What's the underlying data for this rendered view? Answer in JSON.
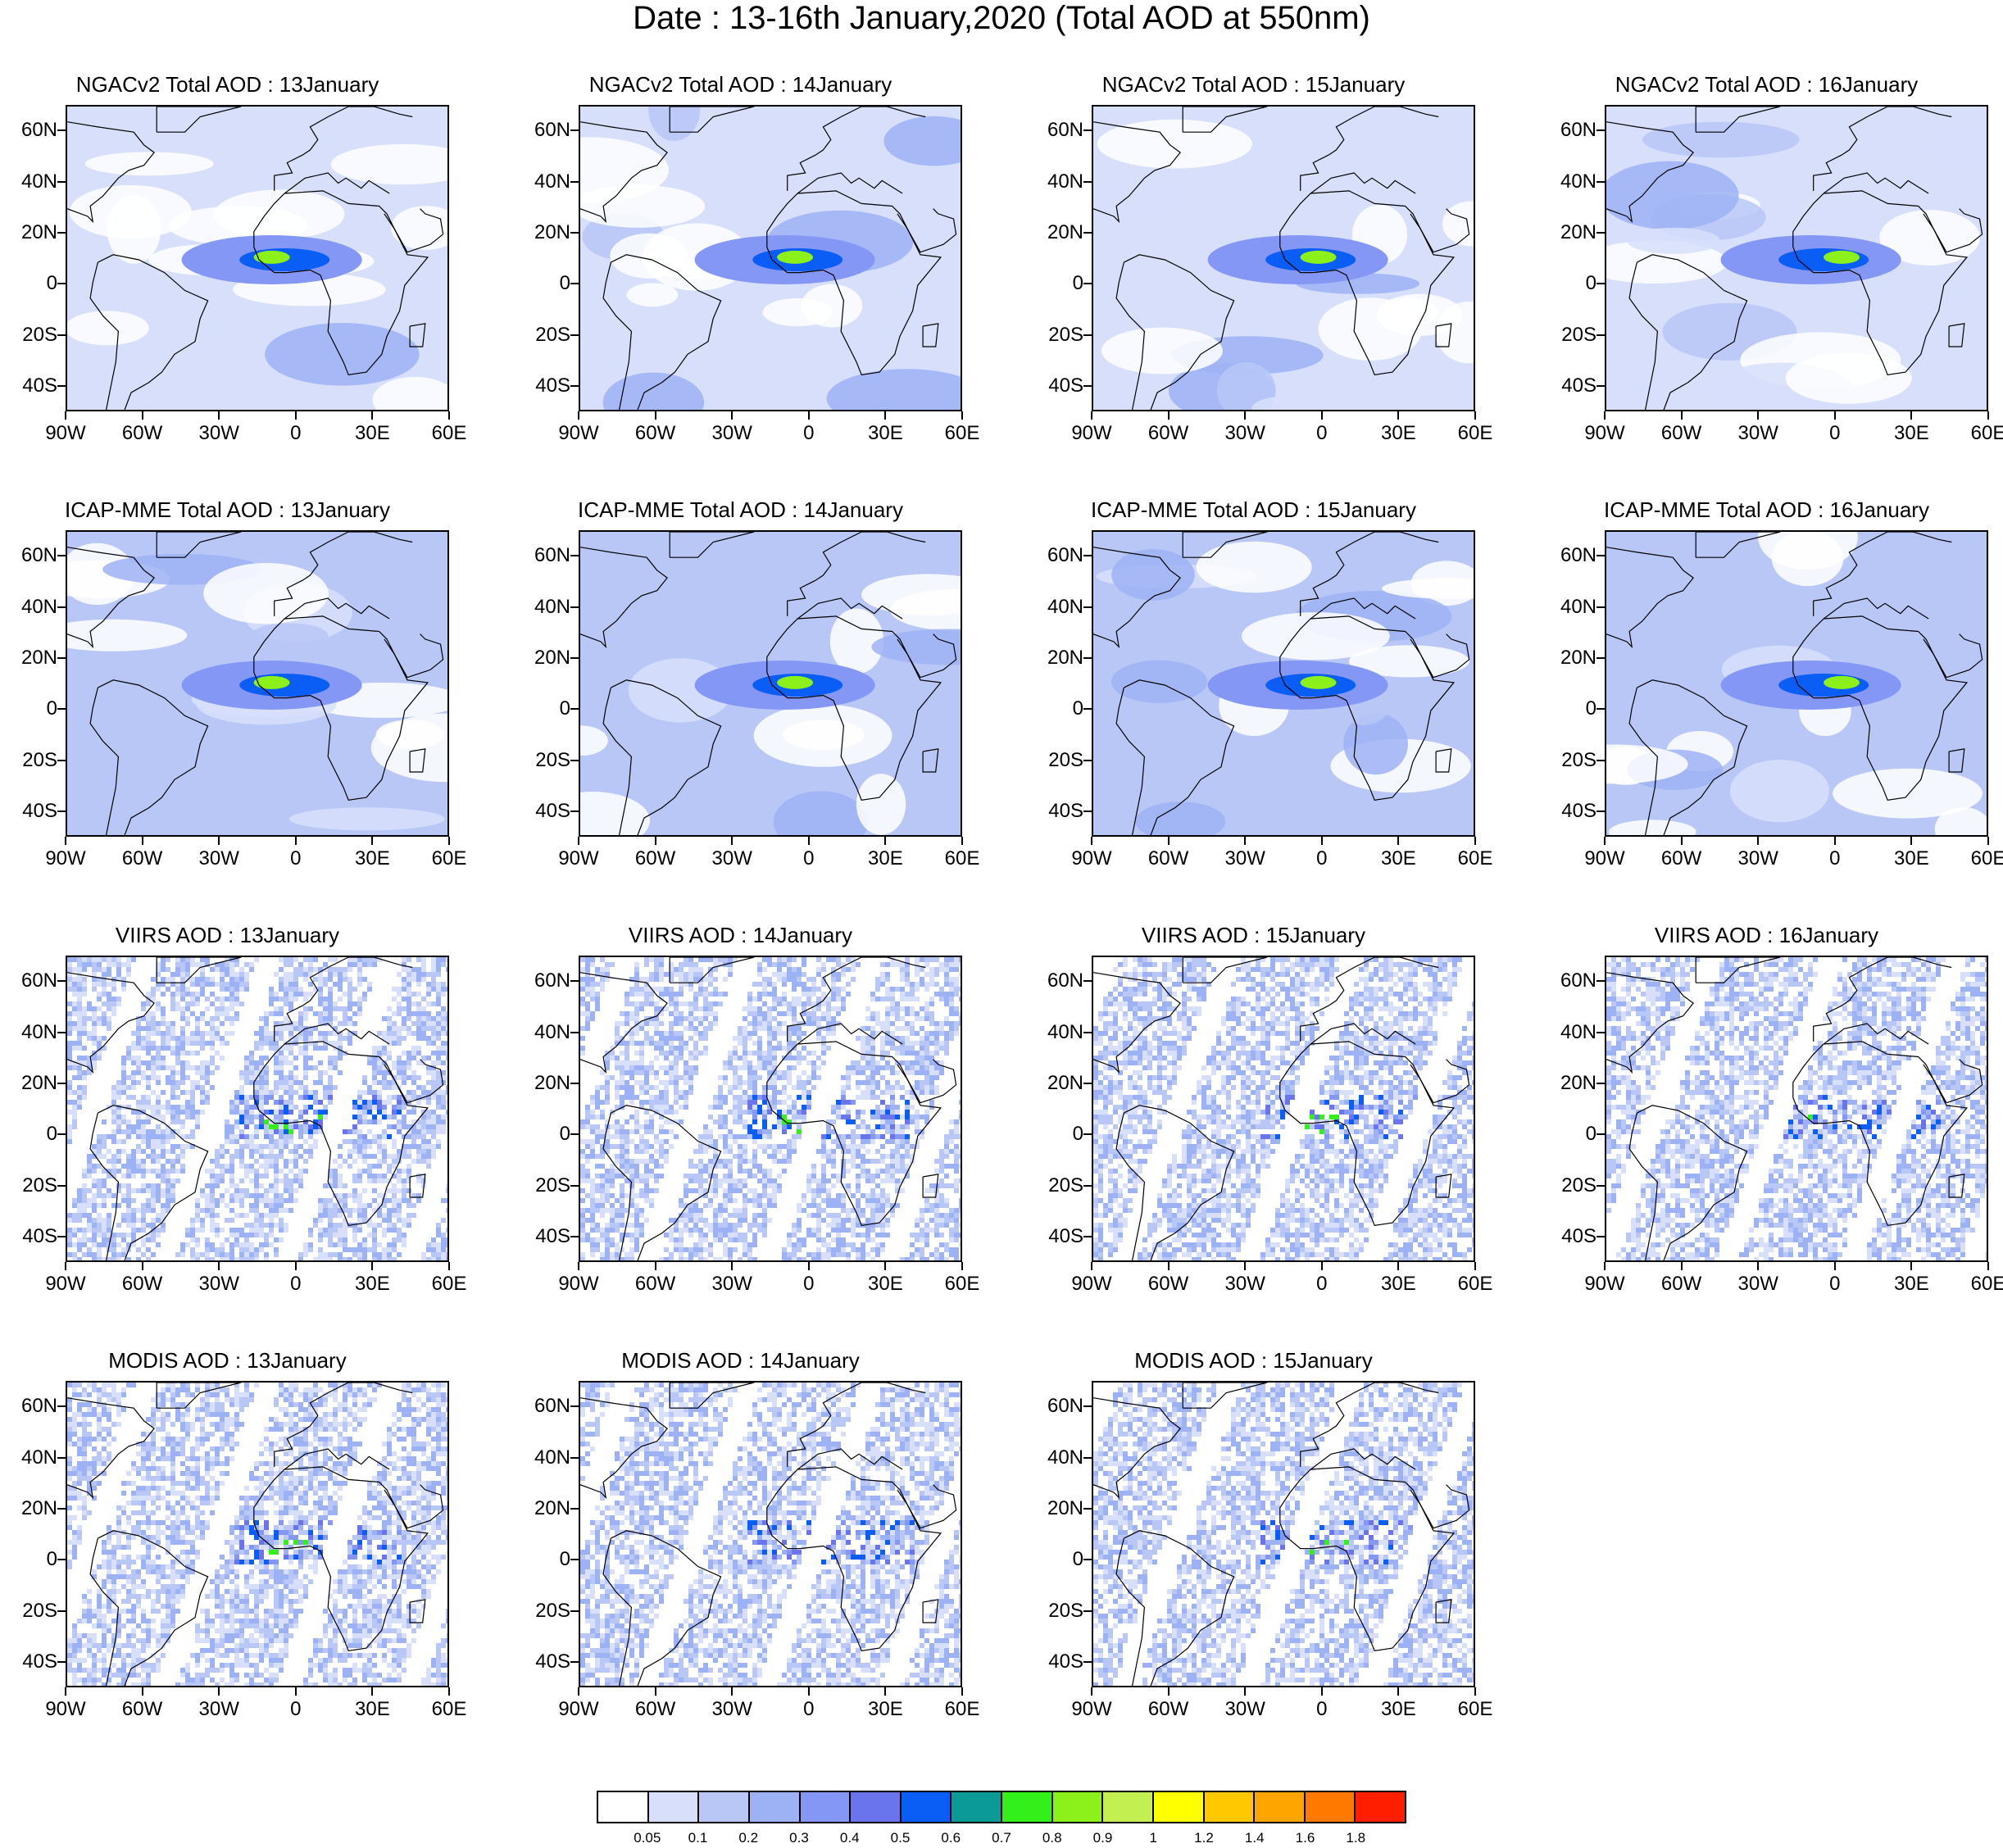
{
  "title": "Date : 13-16th January,2020 (Total AOD at 550nm)",
  "axes": {
    "y_labels": [
      "60N",
      "40N",
      "20N",
      "0",
      "20S",
      "40S"
    ],
    "x_labels": [
      "90W",
      "60W",
      "30W",
      "0",
      "30E",
      "60E"
    ]
  },
  "panels": [
    {
      "title": "NGACv2 Total AOD : 13January",
      "row": 0,
      "col": 0,
      "type": "model",
      "date": 13
    },
    {
      "title": "NGACv2 Total AOD : 14January",
      "row": 0,
      "col": 1,
      "type": "model",
      "date": 14
    },
    {
      "title": "NGACv2 Total AOD : 15January",
      "row": 0,
      "col": 2,
      "type": "model",
      "date": 15
    },
    {
      "title": "NGACv2 Total AOD : 16January",
      "row": 0,
      "col": 3,
      "type": "model",
      "date": 16
    },
    {
      "title": "ICAP-MME Total AOD : 13January",
      "row": 1,
      "col": 0,
      "type": "ensemble",
      "date": 13
    },
    {
      "title": "ICAP-MME Total AOD : 14January",
      "row": 1,
      "col": 1,
      "type": "ensemble",
      "date": 14
    },
    {
      "title": "ICAP-MME Total AOD : 15January",
      "row": 1,
      "col": 2,
      "type": "ensemble",
      "date": 15
    },
    {
      "title": "ICAP-MME Total AOD : 16January",
      "row": 1,
      "col": 3,
      "type": "ensemble",
      "date": 16
    },
    {
      "title": "VIIRS AOD : 13January",
      "row": 2,
      "col": 0,
      "type": "satellite",
      "date": 13
    },
    {
      "title": "VIIRS AOD : 14January",
      "row": 2,
      "col": 1,
      "type": "satellite",
      "date": 14
    },
    {
      "title": "VIIRS AOD : 15January",
      "row": 2,
      "col": 2,
      "type": "satellite",
      "date": 15
    },
    {
      "title": "VIIRS AOD : 16January",
      "row": 2,
      "col": 3,
      "type": "satellite",
      "date": 16
    },
    {
      "title": "MODIS AOD : 13January",
      "row": 3,
      "col": 0,
      "type": "satellite",
      "date": 13
    },
    {
      "title": "MODIS AOD : 14January",
      "row": 3,
      "col": 1,
      "type": "satellite",
      "date": 14
    },
    {
      "title": "MODIS AOD : 15January",
      "row": 3,
      "col": 2,
      "type": "satellite",
      "date": 15
    }
  ],
  "colorbar": {
    "colors": [
      "#ffffff",
      "#d7dffb",
      "#b9c7f7",
      "#9db1f5",
      "#8497f5",
      "#6a74ec",
      "#0a5df5",
      "#0c9a96",
      "#33f01a",
      "#8cf01a",
      "#c3f050",
      "#ffff00",
      "#ffc800",
      "#ffa500",
      "#ff7800",
      "#ff1e00"
    ],
    "labels": [
      "0.05",
      "0.1",
      "0.2",
      "0.3",
      "0.4",
      "0.5",
      "0.6",
      "0.7",
      "0.8",
      "0.9",
      "1",
      "1.2",
      "1.4",
      "1.6",
      "1.8"
    ]
  }
}
